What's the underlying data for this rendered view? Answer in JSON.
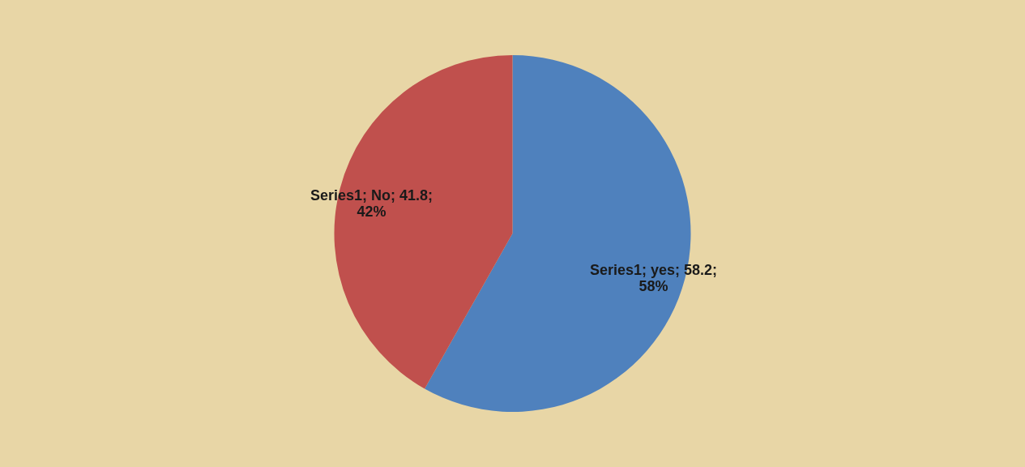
{
  "chart_data": {
    "type": "pie",
    "categories": [
      null,
      null
    ],
    "values": [
      58.2,
      41.8
    ],
    "colors": [
      "#4f81bd",
      "#c0504d"
    ],
    "value_labels": [
      "Series1; yes; 58.2; 58%",
      "Series1; No; 41.8; 42%"
    ]
  }
}
